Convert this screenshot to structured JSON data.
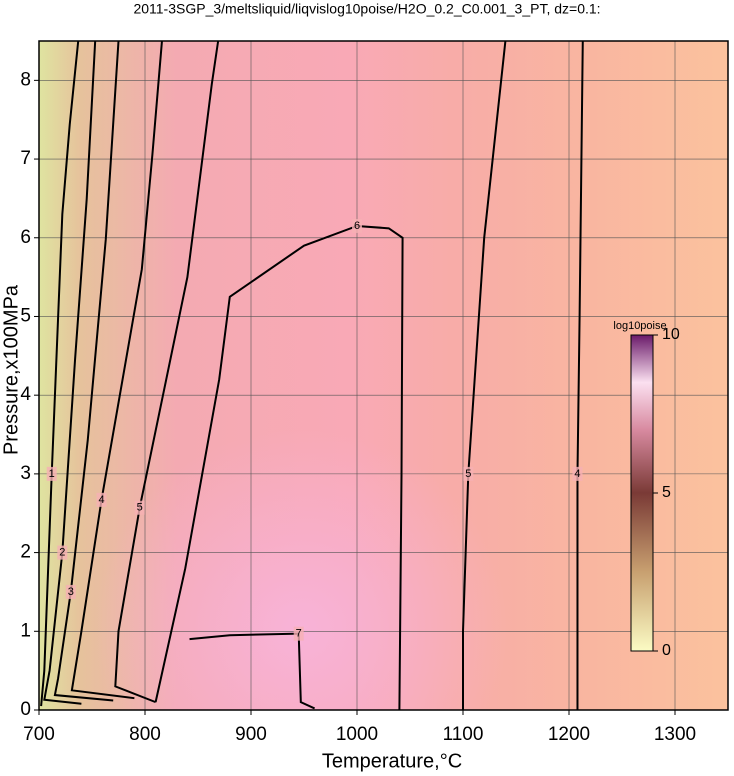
{
  "chart_data": {
    "type": "contour",
    "title": "2011-3SGP_3/meltsliquid/liqvislog10poise/H2O_0.2_C0.001_3_PT, dz=0.1:",
    "xlabel": "Temperature,°C",
    "ylabel": "Pressure,x100MPa",
    "xlim": [
      700,
      1350
    ],
    "ylim": [
      0,
      8.5
    ],
    "xticks": [
      700,
      800,
      900,
      1000,
      1100,
      1200,
      1300
    ],
    "yticks": [
      0,
      1,
      2,
      3,
      4,
      5,
      6,
      7,
      8
    ],
    "grid": true,
    "color": "#000000",
    "contours": [
      {
        "level": 1,
        "x": [
          737,
          729,
          722,
          712,
          705,
          702
        ],
        "y": [
          8.5,
          7.44,
          6.3,
          3,
          0.5,
          0.05
        ]
      },
      {
        "level": 2,
        "x": [
          753,
          745,
          734,
          722,
          710,
          705,
          740
        ],
        "y": [
          8.5,
          6.49,
          4.45,
          2,
          0.5,
          0.13,
          0.08
        ]
      },
      {
        "level": 3,
        "x": [
          775,
          763,
          746,
          730,
          718,
          715,
          770
        ],
        "y": [
          8.5,
          5.98,
          3.43,
          1.5,
          0.4,
          0.19,
          0.12
        ]
      },
      {
        "level": 4,
        "x": [
          816,
          807,
          797,
          759,
          740,
          731,
          790
        ],
        "y": [
          8.5,
          7.06,
          5.6,
          2.67,
          1,
          0.25,
          0.15
        ]
      },
      {
        "level": 5,
        "x": [
          869,
          863,
          840,
          795,
          775,
          772,
          810
        ],
        "y": [
          8.5,
          7.95,
          5.5,
          2.57,
          1,
          0.3,
          0.1
        ]
      },
      {
        "level": 6,
        "x": [
          810,
          838,
          870,
          880,
          950,
          1000,
          1030,
          1043,
          1042,
          1040
        ],
        "y": [
          0.1,
          1.8,
          4.2,
          5.25,
          5.9,
          6.15,
          6.12,
          6,
          3,
          0
        ]
      },
      {
        "level": 7,
        "x": [
          842,
          880,
          945,
          947,
          960
        ],
        "y": [
          0.9,
          0.95,
          0.97,
          0.1,
          0.02
        ]
      },
      {
        "level": 5,
        "x": [
          1140,
          1120,
          1105,
          1100,
          1100
        ],
        "y": [
          8.5,
          6,
          3,
          1,
          0
        ]
      },
      {
        "level": 4,
        "x": [
          1213,
          1210,
          1208,
          1208
        ],
        "y": [
          8.5,
          5,
          3,
          0
        ]
      }
    ],
    "colorbar": {
      "label": "log10poise",
      "lim": [
        0,
        10
      ],
      "ticks": [
        0,
        5,
        10
      ]
    }
  }
}
